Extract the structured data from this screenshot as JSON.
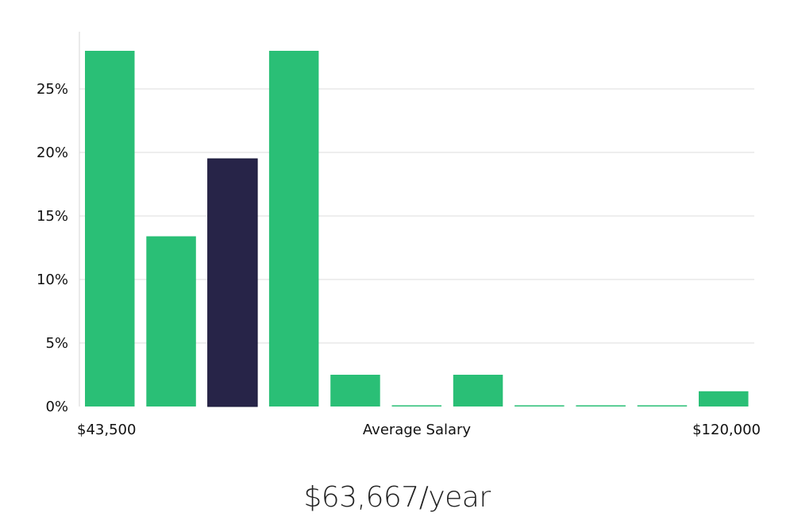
{
  "chart_data": {
    "type": "bar",
    "title": "",
    "xlabel": "Average Salary",
    "ylabel": "",
    "x_min_label": "$43,500",
    "x_max_label": "$120,000",
    "ylim": [
      0,
      29.5
    ],
    "yticks": [
      0,
      5,
      10,
      15,
      20,
      25
    ],
    "ytick_labels": [
      "0%",
      "5%",
      "10%",
      "15%",
      "20%",
      "25%"
    ],
    "values": [
      28,
      13.4,
      19.5,
      28,
      2.5,
      0,
      2.5,
      0,
      0,
      0,
      1.2
    ],
    "highlight_index": 2,
    "colors": {
      "bar": "#2abf76",
      "highlight": "#272448",
      "grid": "#dcdcdc"
    }
  },
  "summary": {
    "salary": "$63,667/year"
  }
}
